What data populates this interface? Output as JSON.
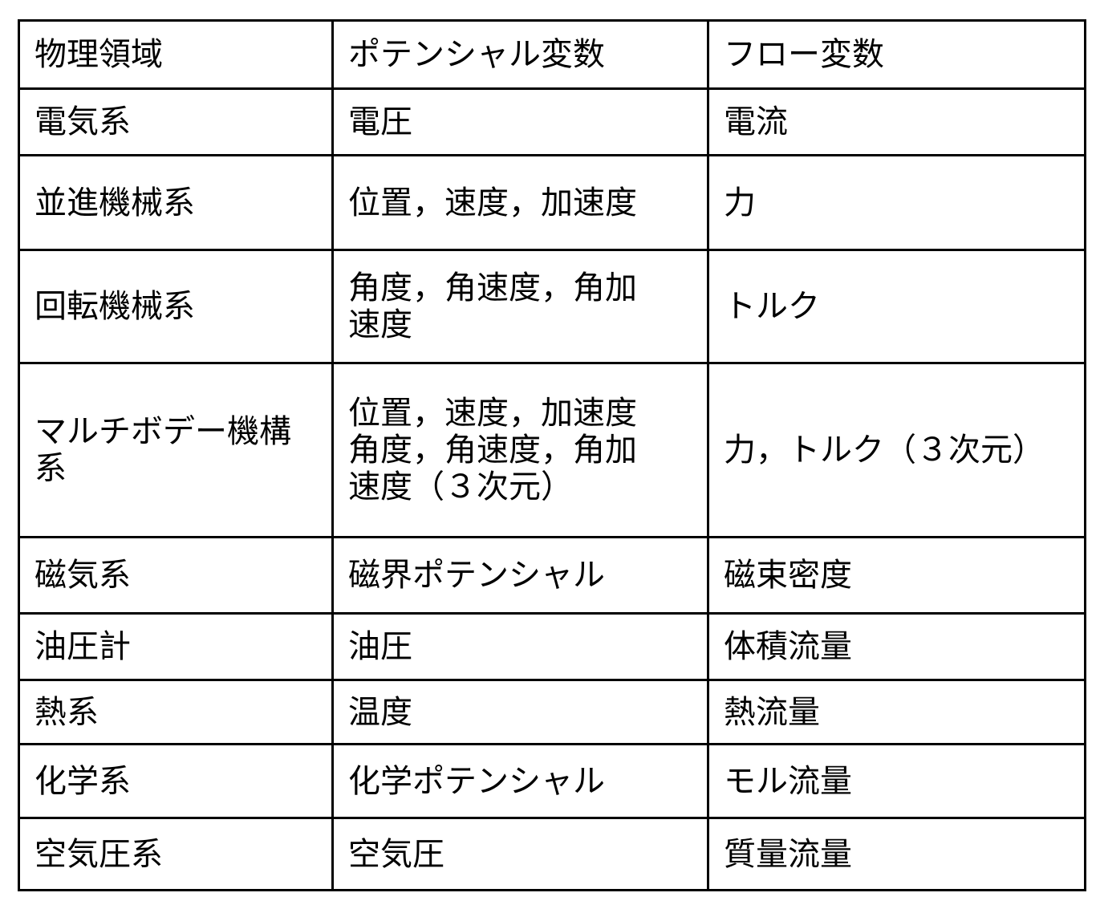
{
  "table": {
    "headers": [
      "物理領域",
      "ポテンシャル変数",
      "フロー変数"
    ],
    "rows": [
      [
        "電気系",
        "電圧",
        "電流"
      ],
      [
        "並進機械系",
        "位置，速度，加速度",
        "力"
      ],
      [
        "回転機械系",
        "角度，角速度，角加\n速度",
        "トルク"
      ],
      [
        "マルチボデー機構系",
        "位置，速度，加速度\n角度，角速度，角加\n速度（３次元）",
        "力，トルク（３次元）"
      ],
      [
        "磁気系",
        "磁界ポテンシャル",
        "磁束密度"
      ],
      [
        "油圧計",
        "油圧",
        "体積流量"
      ],
      [
        "熱系",
        "温度",
        "熱流量"
      ],
      [
        "化学系",
        "化学ポテンシャル",
        "モル流量"
      ],
      [
        "空気圧系",
        "空気圧",
        "質量流量"
      ]
    ]
  }
}
